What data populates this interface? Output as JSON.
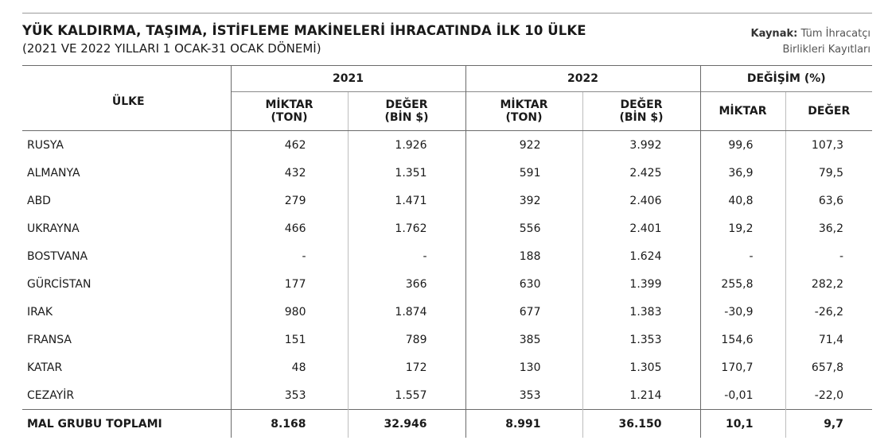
{
  "title": "YÜK KALDIRMA, TAŞIMA, İSTİFLEME MAKİNELERİ İHRACATINDA İLK 10 ÜLKE",
  "subtitle": "(2021 VE 2022 YILLARI 1 OCAK-31 OCAK DÖNEMİ)",
  "source": {
    "label": "Kaynak:",
    "line1": "Tüm İhracatçı",
    "line2": "Birlikleri Kayıtları"
  },
  "headers": {
    "country": "ÜLKE",
    "year1": "2021",
    "year2": "2022",
    "change": "DEĞİŞİM (%)",
    "qty_line1": "MİKTAR",
    "qty_line2": "(TON)",
    "val_line1": "DEĞER",
    "val_line2": "(BİN $)",
    "chg_qty": "MİKTAR",
    "chg_val": "DEĞER"
  },
  "rows": [
    {
      "country": "RUSYA",
      "q2021": "462",
      "v2021": "1.926",
      "q2022": "922",
      "v2022": "3.992",
      "cq": "99,6",
      "cv": "107,3"
    },
    {
      "country": "ALMANYA",
      "q2021": "432",
      "v2021": "1.351",
      "q2022": "591",
      "v2022": "2.425",
      "cq": "36,9",
      "cv": "79,5"
    },
    {
      "country": "ABD",
      "q2021": "279",
      "v2021": "1.471",
      "q2022": "392",
      "v2022": "2.406",
      "cq": "40,8",
      "cv": "63,6"
    },
    {
      "country": "UKRAYNA",
      "q2021": "466",
      "v2021": "1.762",
      "q2022": "556",
      "v2022": "2.401",
      "cq": "19,2",
      "cv": "36,2"
    },
    {
      "country": "BOSTVANA",
      "q2021": "-",
      "v2021": "-",
      "q2022": "188",
      "v2022": "1.624",
      "cq": "-",
      "cv": "-"
    },
    {
      "country": "GÜRCİSTAN",
      "q2021": "177",
      "v2021": "366",
      "q2022": "630",
      "v2022": "1.399",
      "cq": "255,8",
      "cv": "282,2"
    },
    {
      "country": "IRAK",
      "q2021": "980",
      "v2021": "1.874",
      "q2022": "677",
      "v2022": "1.383",
      "cq": "-30,9",
      "cv": "-26,2"
    },
    {
      "country": "FRANSA",
      "q2021": "151",
      "v2021": "789",
      "q2022": "385",
      "v2022": "1.353",
      "cq": "154,6",
      "cv": "71,4"
    },
    {
      "country": "KATAR",
      "q2021": "48",
      "v2021": "172",
      "q2022": "130",
      "v2022": "1.305",
      "cq": "170,7",
      "cv": "657,8"
    },
    {
      "country": "CEZAYİR",
      "q2021": "353",
      "v2021": "1.557",
      "q2022": "353",
      "v2022": "1.214",
      "cq": "-0,01",
      "cv": "-22,0"
    }
  ],
  "total": {
    "country": "MAL GRUBU TOPLAMI",
    "q2021": "8.168",
    "v2021": "32.946",
    "q2022": "8.991",
    "v2022": "36.150",
    "cq": "10,1",
    "cv": "9,7"
  }
}
